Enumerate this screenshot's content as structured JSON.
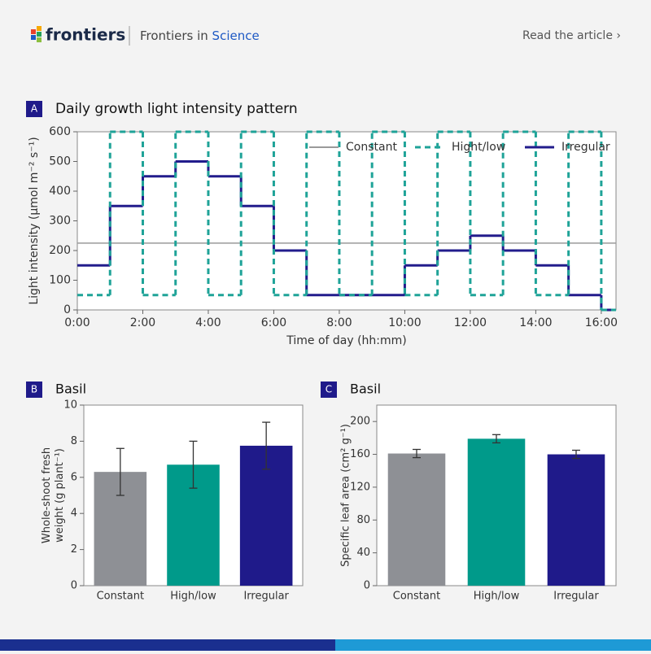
{
  "header": {
    "brand": "frontiers",
    "journal_prefix": "Frontiers in",
    "journal_name": "Science",
    "link": "Read the article ›"
  },
  "chart_data": [
    {
      "type": "line",
      "panel": "A",
      "title": "Daily growth light intensity pattern",
      "step": "post",
      "x": [
        0,
        1,
        2,
        3,
        4,
        5,
        6,
        7,
        8,
        9,
        10,
        11,
        12,
        13,
        14,
        15,
        16
      ],
      "xlim": [
        0,
        16.45
      ],
      "xticks": [
        {
          "value": 0,
          "label": "0:00"
        },
        {
          "value": 2,
          "label": "2:00"
        },
        {
          "value": 4,
          "label": "4:00"
        },
        {
          "value": 6,
          "label": "6:00"
        },
        {
          "value": 8,
          "label": "8:00"
        },
        {
          "value": 10,
          "label": "10:00"
        },
        {
          "value": 12,
          "label": "12:00"
        },
        {
          "value": 14,
          "label": "14:00"
        },
        {
          "value": 16,
          "label": "16:00"
        }
      ],
      "ylim": [
        0,
        600
      ],
      "yticks": [
        0,
        100,
        200,
        300,
        400,
        500,
        600
      ],
      "xlabel": "Time of day (hh:mm)",
      "ylabel": "Light intensity (µmol m⁻² s⁻¹)",
      "legend": "upper right",
      "series": [
        {
          "name": "Constant",
          "color": "#9a9a9a",
          "dash": false,
          "values": [
            225,
            225,
            225,
            225,
            225,
            225,
            225,
            225,
            225,
            225,
            225,
            225,
            225,
            225,
            225,
            225,
            225
          ]
        },
        {
          "name": "Hight/low",
          "color": "#1fa398",
          "dash": true,
          "values": [
            50,
            600,
            50,
            600,
            50,
            600,
            50,
            600,
            50,
            600,
            50,
            600,
            50,
            600,
            50,
            600,
            0
          ]
        },
        {
          "name": "Irregular",
          "color": "#221c8c",
          "dash": false,
          "values": [
            150,
            350,
            450,
            500,
            450,
            350,
            200,
            50,
            50,
            50,
            150,
            200,
            250,
            200,
            150,
            50,
            0
          ]
        }
      ]
    },
    {
      "type": "bar",
      "panel": "B",
      "title": "Basil",
      "ylabel": "Whole-shoot fresh weight (g plant⁻¹)",
      "categories": [
        "Constant",
        "High/low",
        "Irregular"
      ],
      "values": [
        6.3,
        6.7,
        7.75
      ],
      "errors": [
        1.3,
        1.3,
        1.3
      ],
      "colors": [
        "#8e9095",
        "#009a8a",
        "#1f1a8a"
      ],
      "ylim": [
        0,
        10
      ],
      "yticks": [
        0,
        2,
        4,
        6,
        8,
        10
      ]
    },
    {
      "type": "bar",
      "panel": "C",
      "title": "Basil",
      "ylabel": "Specific leaf area (cm² g⁻¹)",
      "categories": [
        "Constant",
        "High/low",
        "Irregular"
      ],
      "values": [
        161,
        179,
        160
      ],
      "errors": [
        5,
        5,
        5
      ],
      "colors": [
        "#8e9095",
        "#009a8a",
        "#1f1a8a"
      ],
      "ylim": [
        0,
        220
      ],
      "yticks": [
        0,
        40,
        80,
        120,
        160,
        200
      ]
    }
  ]
}
